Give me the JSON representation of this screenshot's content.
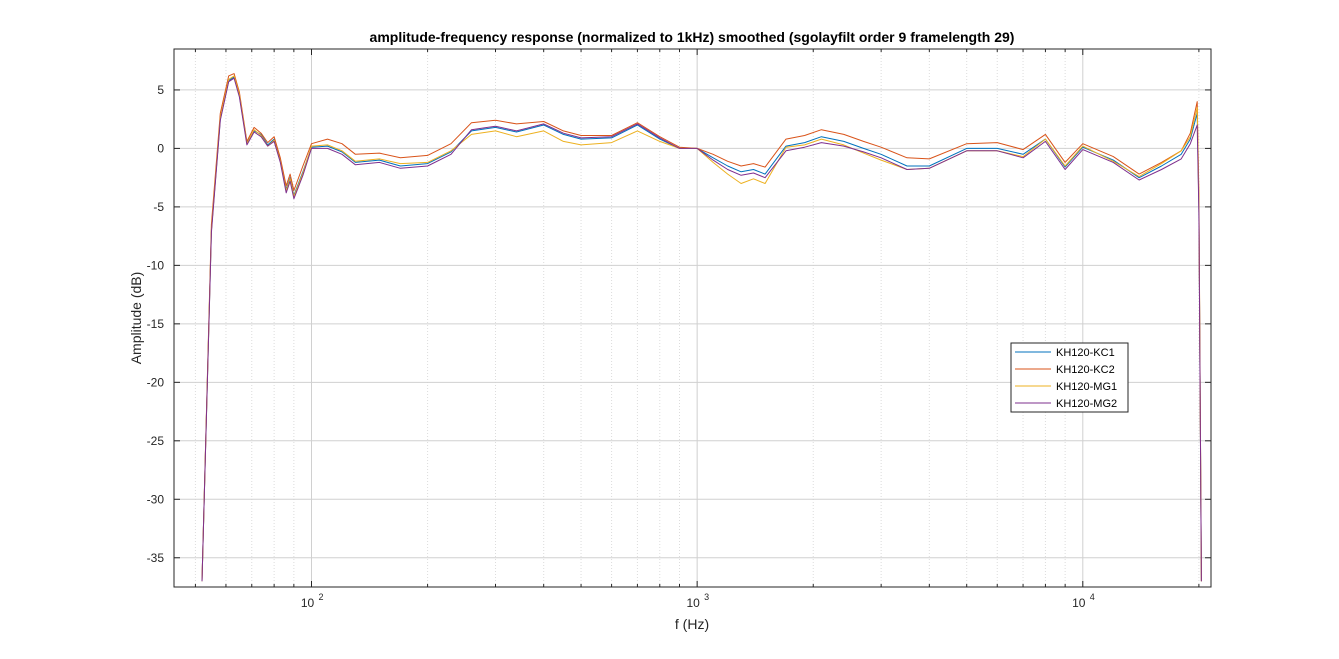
{
  "chart_data": {
    "type": "line",
    "title": "amplitude-frequency response (normalized to 1kHz) smoothed (sgolayfilt order 9 framelength 29)",
    "xlabel": "f (Hz)",
    "ylabel": "Amplitude (dB)",
    "xscale": "log",
    "xlim": [
      44,
      21500
    ],
    "ylim": [
      -37.5,
      8.5
    ],
    "x_ticks": [
      {
        "base": "10",
        "exp": "2",
        "value": 100
      },
      {
        "base": "10",
        "exp": "3",
        "value": 1000
      },
      {
        "base": "10",
        "exp": "4",
        "value": 10000
      }
    ],
    "y_ticks": [
      {
        "label": "5",
        "value": 5
      },
      {
        "label": "0",
        "value": 0
      },
      {
        "label": "-5",
        "value": -5
      },
      {
        "label": "-10",
        "value": -10
      },
      {
        "label": "-15",
        "value": -15
      },
      {
        "label": "-20",
        "value": -20
      },
      {
        "label": "-25",
        "value": -25
      },
      {
        "label": "-30",
        "value": -30
      },
      {
        "label": "-35",
        "value": -35
      }
    ],
    "grid": true,
    "legend_position": "right",
    "x": [
      52,
      55,
      58,
      61,
      63,
      65,
      68,
      71,
      74,
      77,
      80,
      83,
      86,
      88,
      90,
      95,
      100,
      110,
      120,
      130,
      150,
      170,
      200,
      230,
      260,
      300,
      340,
      400,
      450,
      500,
      600,
      700,
      800,
      900,
      1000,
      1100,
      1200,
      1300,
      1400,
      1500,
      1700,
      1900,
      2100,
      2400,
      2700,
      3000,
      3500,
      4000,
      5000,
      6000,
      7000,
      8000,
      9000,
      10000,
      12000,
      14000,
      16000,
      18000,
      19000,
      19800,
      20000,
      20300
    ],
    "series": [
      {
        "name": "KH120-KC1",
        "color": "#0072bd",
        "values": [
          -37,
          -7,
          2.5,
          5.8,
          6.1,
          4.5,
          0.5,
          1.5,
          1.2,
          0.3,
          0.8,
          -1,
          -3.5,
          -2.5,
          -4,
          -2,
          0.1,
          0.2,
          -0.3,
          -1.2,
          -1,
          -1.5,
          -1.3,
          -0.3,
          1.5,
          1.8,
          1.4,
          2,
          1.2,
          0.8,
          0.9,
          2,
          0.8,
          0,
          0,
          -0.8,
          -1.5,
          -2,
          -1.8,
          -2.2,
          0.2,
          0.5,
          1,
          0.6,
          0,
          -0.5,
          -1.5,
          -1.5,
          0,
          0,
          -0.5,
          0.8,
          -1.6,
          0.1,
          -1,
          -2.5,
          -1.5,
          -0.5,
          0.8,
          3,
          -5,
          -37
        ]
      },
      {
        "name": "KH120-KC2",
        "color": "#d95319",
        "values": [
          -37,
          -6.5,
          3,
          6.2,
          6.4,
          4.8,
          0.6,
          1.8,
          1.3,
          0.5,
          1,
          -0.8,
          -3.2,
          -2.2,
          -3.6,
          -1.5,
          0.4,
          0.8,
          0.4,
          -0.5,
          -0.4,
          -0.8,
          -0.6,
          0.4,
          2.2,
          2.4,
          2.1,
          2.3,
          1.5,
          1.1,
          1.1,
          2.2,
          1,
          0.1,
          0,
          -0.5,
          -1.1,
          -1.5,
          -1.3,
          -1.6,
          0.8,
          1.1,
          1.6,
          1.2,
          0.6,
          0.1,
          -0.8,
          -0.9,
          0.4,
          0.5,
          -0.1,
          1.2,
          -1.2,
          0.4,
          -0.7,
          -2.2,
          -1.2,
          -0.2,
          1.3,
          4,
          -4,
          -37
        ]
      },
      {
        "name": "KH120-MG1",
        "color": "#edb120",
        "values": [
          -37,
          -7,
          2.6,
          5.9,
          6.2,
          4.6,
          0.4,
          1.6,
          1.1,
          0.2,
          0.7,
          -1.1,
          -3.6,
          -2.6,
          -4.1,
          -2.1,
          0.2,
          0.3,
          -0.2,
          -1.1,
          -0.9,
          -1.3,
          -1.2,
          -0.2,
          1.2,
          1.5,
          1,
          1.5,
          0.6,
          0.3,
          0.5,
          1.5,
          0.6,
          0,
          0,
          -1.2,
          -2.2,
          -3,
          -2.6,
          -3,
          0.1,
          0.3,
          0.8,
          0.3,
          -0.4,
          -1,
          -1.8,
          -1.7,
          -0.2,
          -0.2,
          -0.7,
          0.8,
          -1.5,
          0.2,
          -1.1,
          -2.4,
          -1.3,
          -0.2,
          1,
          3.5,
          -4.5,
          -37
        ]
      },
      {
        "name": "KH120-MG2",
        "color": "#7e2f8e",
        "values": [
          -37,
          -7.2,
          2.4,
          5.7,
          6,
          4.4,
          0.3,
          1.4,
          1,
          0.2,
          0.6,
          -1.2,
          -3.8,
          -2.8,
          -4.3,
          -2.3,
          0,
          0,
          -0.5,
          -1.4,
          -1.2,
          -1.7,
          -1.5,
          -0.5,
          1.6,
          1.9,
          1.5,
          2.1,
          1.3,
          0.9,
          1,
          2.1,
          0.9,
          0,
          0,
          -1,
          -1.8,
          -2.3,
          -2.1,
          -2.5,
          -0.2,
          0.1,
          0.5,
          0.2,
          -0.3,
          -0.8,
          -1.8,
          -1.7,
          -0.2,
          -0.2,
          -0.8,
          0.6,
          -1.8,
          -0.1,
          -1.2,
          -2.7,
          -1.8,
          -0.9,
          0.4,
          2,
          -5.5,
          -37
        ]
      }
    ]
  }
}
